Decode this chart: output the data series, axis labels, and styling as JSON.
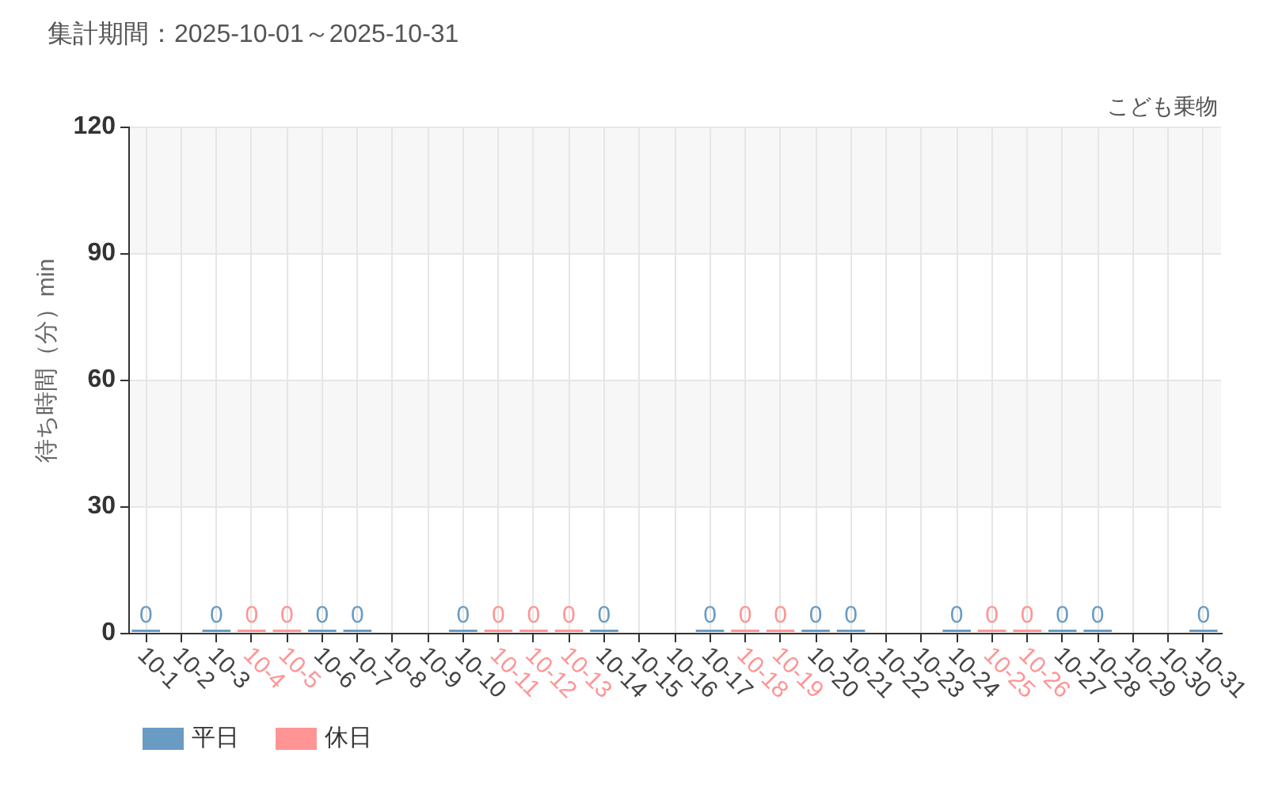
{
  "chart_data": {
    "type": "bar",
    "title": "集計期間：2025-10-01～2025-10-31",
    "subtitle": "こども乗物",
    "ylabel": "待ち時間（分）min",
    "categories": [
      "10-1",
      "10-2",
      "10-3",
      "10-4",
      "10-5",
      "10-6",
      "10-7",
      "10-8",
      "10-9",
      "10-10",
      "10-11",
      "10-12",
      "10-13",
      "10-14",
      "10-15",
      "10-16",
      "10-17",
      "10-18",
      "10-19",
      "10-20",
      "10-21",
      "10-22",
      "10-23",
      "10-24",
      "10-25",
      "10-26",
      "10-27",
      "10-28",
      "10-29",
      "10-30",
      "10-31"
    ],
    "series": [
      {
        "name": "平日",
        "color": "#6a9bc3",
        "values": [
          0,
          null,
          0,
          null,
          null,
          0,
          0,
          null,
          null,
          0,
          null,
          null,
          null,
          0,
          null,
          null,
          0,
          null,
          null,
          0,
          0,
          null,
          null,
          0,
          null,
          null,
          0,
          0,
          null,
          null,
          0
        ]
      },
      {
        "name": "休日",
        "color": "#ff9494",
        "values": [
          null,
          null,
          null,
          0,
          0,
          null,
          null,
          null,
          null,
          null,
          0,
          0,
          0,
          null,
          null,
          null,
          null,
          0,
          0,
          null,
          null,
          null,
          null,
          null,
          0,
          0,
          null,
          null,
          null,
          null,
          null
        ]
      }
    ],
    "ylim": [
      0,
      120
    ],
    "yticks": [
      0,
      30,
      60,
      90,
      120
    ],
    "grid": true,
    "legend": "bottom left",
    "data_labels": true,
    "bands": [
      {
        "axis": "y",
        "from": 30,
        "to": 60,
        "color": "#f7f7f7"
      },
      {
        "axis": "y",
        "from": 90,
        "to": 120,
        "color": "#f7f7f7"
      }
    ]
  }
}
